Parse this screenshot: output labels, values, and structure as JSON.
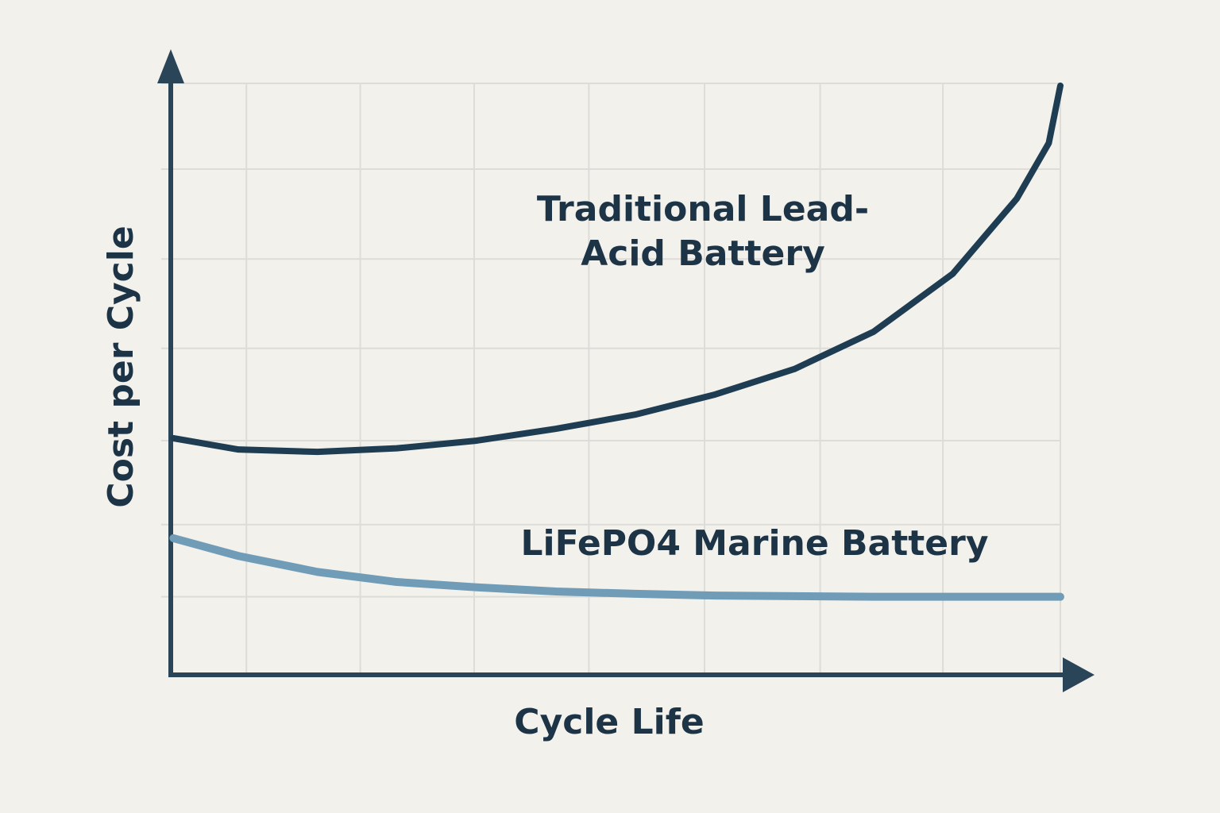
{
  "chart_data": {
    "type": "line",
    "x_label": "Cycle Life",
    "y_label": "Cost per Cycle",
    "xlim": [
      0,
      100
    ],
    "ylim": [
      0,
      100
    ],
    "xticks": [
      8.5,
      21.3,
      34.1,
      47,
      60,
      73,
      86.8,
      100
    ],
    "yticks": [
      13.2,
      25.4,
      39.6,
      55.2,
      70.3,
      85.5,
      100
    ],
    "grid": true,
    "x": [
      0.3,
      7.6,
      16.5,
      25.4,
      34.4,
      43.3,
      52.2,
      61.2,
      70.1,
      79.0,
      87.9,
      95.1,
      98.7,
      100
    ],
    "series": [
      {
        "name": "Traditional Lead-Acid Battery",
        "color": "#1f3d52",
        "values": [
          40.0,
          38.1,
          37.7,
          38.3,
          39.6,
          41.6,
          44.0,
          47.4,
          51.7,
          58.0,
          67.8,
          80.5,
          89.9,
          99.6
        ]
      },
      {
        "name": "LiFePO4 Marine Battery",
        "color": "#719cb8",
        "values": [
          23.1,
          20.1,
          17.4,
          15.7,
          14.8,
          14.1,
          13.7,
          13.4,
          13.3,
          13.2,
          13.2,
          13.2,
          13.2,
          13.2
        ]
      }
    ]
  }
}
